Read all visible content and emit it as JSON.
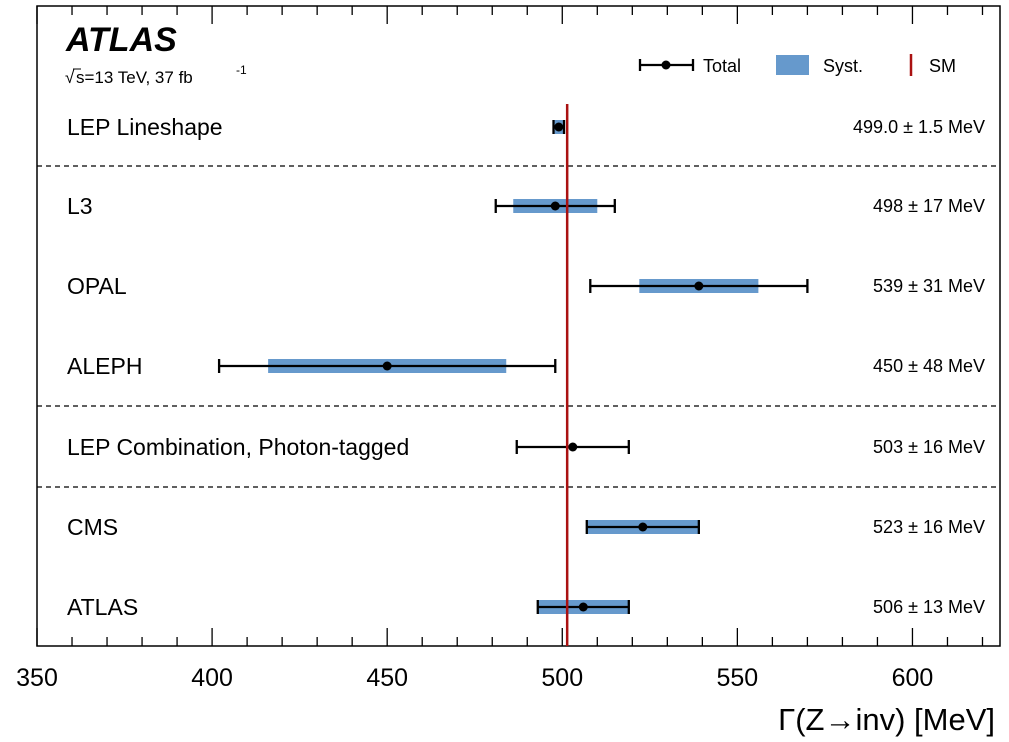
{
  "chart_data": {
    "type": "forest",
    "experiment_label": "ATLAS",
    "energy_lumi_label": "s=13 TeV, 37 fb",
    "lumi_superscript": "-1",
    "sqrt_symbol": "√",
    "xlabel": "Γ(Z→inv) [MeV]",
    "xlim": [
      350,
      625
    ],
    "x_ticks": [
      350,
      400,
      450,
      500,
      550,
      600
    ],
    "x_tick_labels": [
      "350",
      "400",
      "450",
      "500",
      "550",
      "600"
    ],
    "sm_value": 501.4,
    "legend": {
      "placement": "top-right",
      "total_label": "Total",
      "syst_label": "Syst.",
      "sm_label": "SM"
    },
    "colors": {
      "syst": "#6699cc",
      "sm_line": "#aa1111",
      "marker": "#000000"
    },
    "measurements": [
      {
        "label": "LEP Lineshape",
        "value": 499.0,
        "total_lo": 497.5,
        "total_hi": 500.5,
        "syst_lo": 497.8,
        "syst_hi": 500.2,
        "result": "499.0 ± 1.5 MeV"
      },
      {
        "label": "L3",
        "value": 498,
        "total_lo": 481,
        "total_hi": 515,
        "syst_lo": 486,
        "syst_hi": 510,
        "result": "498 ± 17 MeV"
      },
      {
        "label": "OPAL",
        "value": 539,
        "total_lo": 508,
        "total_hi": 570,
        "syst_lo": 522,
        "syst_hi": 556,
        "result": "539 ± 31 MeV"
      },
      {
        "label": "ALEPH",
        "value": 450,
        "total_lo": 402,
        "total_hi": 498,
        "syst_lo": 416,
        "syst_hi": 484,
        "result": "450 ± 48 MeV"
      },
      {
        "label": "LEP Combination, Photon-tagged",
        "value": 503,
        "total_lo": 487,
        "total_hi": 519,
        "syst_lo": null,
        "syst_hi": null,
        "result": "503 ± 16 MeV"
      },
      {
        "label": "CMS",
        "value": 523,
        "total_lo": 507,
        "total_hi": 539,
        "syst_lo": 507,
        "syst_hi": 539,
        "result": "523 ± 16 MeV"
      },
      {
        "label": "ATLAS",
        "value": 506,
        "total_lo": 493,
        "total_hi": 519,
        "syst_lo": 493,
        "syst_hi": 519,
        "result": "506 ± 13 MeV"
      }
    ],
    "separators_after_index": [
      0,
      3,
      4
    ]
  }
}
